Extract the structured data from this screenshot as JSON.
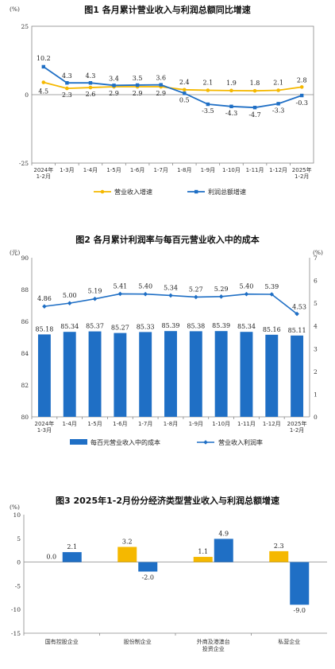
{
  "colors": {
    "orange": "#F5B800",
    "blue": "#1F6FC5",
    "axis": "#888888"
  },
  "chart_data": [
    {
      "type": "line",
      "title": "图1  各月累计营业收入与利润总额同比增速",
      "unit": "(%)",
      "ylim": [
        -25,
        25
      ],
      "yticks": [
        "25",
        "0",
        "-25"
      ],
      "categories": [
        "2024年\n1-2月",
        "1-3月",
        "1-4月",
        "1-5月",
        "1-6月",
        "1-7月",
        "1-8月",
        "1-9月",
        "1-10月",
        "1-11月",
        "1-12月",
        "2025年\n1-2月"
      ],
      "series": [
        {
          "name": "营业收入增速",
          "color": "orange",
          "values": [
            4.5,
            2.3,
            2.6,
            2.9,
            2.9,
            2.9,
            1.8,
            1.6,
            1.5,
            1.4,
            1.6,
            2.8
          ],
          "labels": [
            "4.5",
            "2.3",
            "2.6",
            "2.9",
            "2.9",
            "2.9",
            "",
            "",
            "",
            "",
            "",
            "2.8"
          ]
        },
        {
          "name": "利润总额增速",
          "color": "blue",
          "values": [
            10.2,
            4.3,
            4.3,
            3.4,
            3.5,
            3.6,
            0.5,
            -3.5,
            -4.3,
            -4.7,
            -3.3,
            -0.3
          ],
          "labels": [
            "10.2",
            "4.3",
            "4.3",
            "3.4",
            "3.5",
            "3.6",
            "0.5",
            "-3.5",
            "-4.3",
            "-4.7",
            "-3.3",
            "-0.3"
          ]
        }
      ],
      "extra_labels": [
        "2.4",
        "2.1",
        "1.9",
        "1.8",
        "2.1"
      ]
    },
    {
      "type": "bar+line",
      "title": "图2  各月累计利润率与每百元营业收入中的成本",
      "left_unit": "(元)",
      "right_unit": "(%)",
      "ylim_left": [
        80,
        90
      ],
      "ylim_right": [
        0,
        7
      ],
      "yticks_left": [
        "80",
        "82",
        "84",
        "86",
        "88",
        "90"
      ],
      "yticks_right": [
        "0",
        "1",
        "2",
        "3",
        "4",
        "5",
        "6",
        "7"
      ],
      "categories": [
        "2024年\n1-3月",
        "1-4月",
        "1-5月",
        "1-6月",
        "1-7月",
        "1-8月",
        "1-9月",
        "1-10月",
        "1-11月",
        "1-12月",
        "2025年\n1-2月"
      ],
      "bars": {
        "name": "每百元营业收入中的成本",
        "color": "blue",
        "values": [
          85.18,
          85.34,
          85.37,
          85.27,
          85.33,
          85.39,
          85.38,
          85.39,
          85.34,
          85.16,
          85.11
        ],
        "labels": [
          "85.18",
          "85.34",
          "85.37",
          "85.27",
          "85.33",
          "85.39",
          "85.38",
          "85.39",
          "85.34",
          "85.16",
          "85.11"
        ]
      },
      "line": {
        "name": "营业收入利润率",
        "color": "blue",
        "values": [
          4.86,
          5.0,
          5.19,
          5.41,
          5.4,
          5.34,
          5.27,
          5.29,
          5.4,
          5.39,
          4.53
        ],
        "labels": [
          "4.86",
          "5.00",
          "5.19",
          "5.41",
          "5.40",
          "5.34",
          "5.27",
          "5.29",
          "5.40",
          "5.39",
          "4.53"
        ]
      }
    },
    {
      "type": "bar",
      "title": "图3  2025年1-2月份分经济类型营业收入与利润总额增速",
      "unit": "(%)",
      "ylim": [
        -15,
        10
      ],
      "yticks": [
        "10",
        "5",
        "0",
        "-5",
        "-10",
        "-15"
      ],
      "categories": [
        "国有控股企业",
        "股份制企业",
        "外商及港澳台\n投资企业",
        "私营企业"
      ],
      "series": [
        {
          "color": "orange",
          "values": [
            0.0,
            3.2,
            1.1,
            2.3
          ],
          "labels": [
            "0.0",
            "3.2",
            "1.1",
            "2.3"
          ]
        },
        {
          "color": "blue",
          "values": [
            2.1,
            -2.0,
            4.9,
            -9.0
          ],
          "labels": [
            "2.1",
            "-2.0",
            "4.9",
            "-9.0"
          ]
        }
      ]
    }
  ]
}
